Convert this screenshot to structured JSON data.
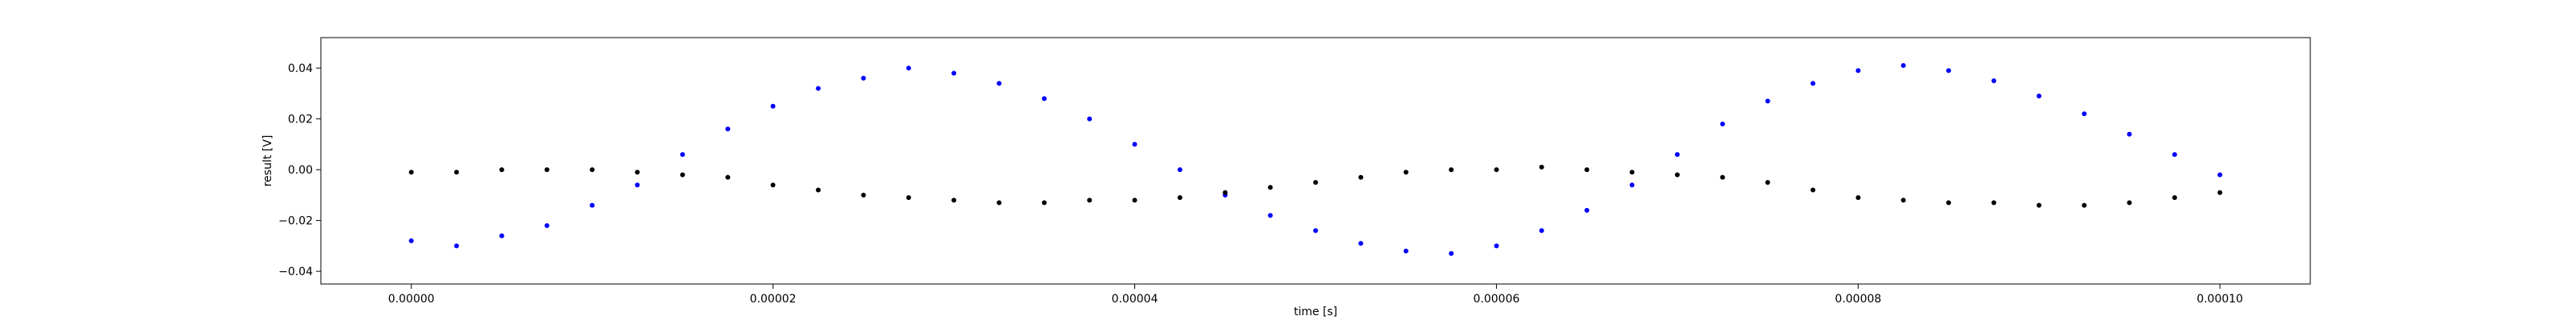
{
  "chart_data": {
    "type": "scatter",
    "title": "",
    "xlabel": "time [s]",
    "ylabel": "result [V]",
    "xlim": [
      -5e-06,
      0.000105
    ],
    "ylim": [
      -0.045,
      0.052
    ],
    "x_ticks": [
      0.0,
      2e-05,
      4e-05,
      6e-05,
      8e-05,
      0.0001
    ],
    "x_tick_labels": [
      "0.00000",
      "0.00002",
      "0.00004",
      "0.00006",
      "0.00008",
      "0.00010"
    ],
    "y_ticks": [
      -0.04,
      -0.02,
      0.0,
      0.02,
      0.04
    ],
    "y_tick_labels": [
      "−0.04",
      "−0.02",
      "0.00",
      "0.02",
      "0.04"
    ],
    "grid": false,
    "legend": "none",
    "series": [
      {
        "color": "#0000ff",
        "marker": "dot",
        "points": [
          [
            0.0,
            -0.028
          ],
          [
            2.5e-06,
            -0.03
          ],
          [
            5e-06,
            -0.026
          ],
          [
            7.5e-06,
            -0.022
          ],
          [
            1e-05,
            -0.014
          ],
          [
            1.25e-05,
            -0.006
          ],
          [
            1.5e-05,
            0.006
          ],
          [
            1.75e-05,
            0.016
          ],
          [
            2e-05,
            0.025
          ],
          [
            2.25e-05,
            0.032
          ],
          [
            2.5e-05,
            0.036
          ],
          [
            2.75e-05,
            0.04
          ],
          [
            3e-05,
            0.038
          ],
          [
            3.25e-05,
            0.034
          ],
          [
            3.5e-05,
            0.028
          ],
          [
            3.75e-05,
            0.02
          ],
          [
            4e-05,
            0.01
          ],
          [
            4.25e-05,
            0.0
          ],
          [
            4.5e-05,
            -0.01
          ],
          [
            4.75e-05,
            -0.018
          ],
          [
            5e-05,
            -0.024
          ],
          [
            5.25e-05,
            -0.029
          ],
          [
            5.5e-05,
            -0.032
          ],
          [
            5.75e-05,
            -0.033
          ],
          [
            6e-05,
            -0.03
          ],
          [
            6.25e-05,
            -0.024
          ],
          [
            6.5e-05,
            -0.016
          ],
          [
            6.75e-05,
            -0.006
          ],
          [
            7e-05,
            0.006
          ],
          [
            7.25e-05,
            0.018
          ],
          [
            7.5e-05,
            0.027
          ],
          [
            7.75e-05,
            0.034
          ],
          [
            8e-05,
            0.039
          ],
          [
            8.25e-05,
            0.041
          ],
          [
            8.5e-05,
            0.039
          ],
          [
            8.75e-05,
            0.035
          ],
          [
            9e-05,
            0.029
          ],
          [
            9.25e-05,
            0.022
          ],
          [
            9.5e-05,
            0.014
          ],
          [
            9.75e-05,
            0.006
          ],
          [
            0.0001,
            -0.002
          ]
        ]
      },
      {
        "color": "#000000",
        "marker": "dot",
        "points": [
          [
            0.0,
            -0.001
          ],
          [
            2.5e-06,
            -0.001
          ],
          [
            5e-06,
            0.0
          ],
          [
            7.5e-06,
            0.0
          ],
          [
            1e-05,
            0.0
          ],
          [
            1.25e-05,
            -0.001
          ],
          [
            1.5e-05,
            -0.002
          ],
          [
            1.75e-05,
            -0.003
          ],
          [
            2e-05,
            -0.006
          ],
          [
            2.25e-05,
            -0.008
          ],
          [
            2.5e-05,
            -0.01
          ],
          [
            2.75e-05,
            -0.011
          ],
          [
            3e-05,
            -0.012
          ],
          [
            3.25e-05,
            -0.013
          ],
          [
            3.5e-05,
            -0.013
          ],
          [
            3.75e-05,
            -0.012
          ],
          [
            4e-05,
            -0.012
          ],
          [
            4.25e-05,
            -0.011
          ],
          [
            4.5e-05,
            -0.009
          ],
          [
            4.75e-05,
            -0.007
          ],
          [
            5e-05,
            -0.005
          ],
          [
            5.25e-05,
            -0.003
          ],
          [
            5.5e-05,
            -0.001
          ],
          [
            5.75e-05,
            0.0
          ],
          [
            6e-05,
            0.0
          ],
          [
            6.25e-05,
            0.001
          ],
          [
            6.5e-05,
            0.0
          ],
          [
            6.75e-05,
            -0.001
          ],
          [
            7e-05,
            -0.002
          ],
          [
            7.25e-05,
            -0.003
          ],
          [
            7.5e-05,
            -0.005
          ],
          [
            7.75e-05,
            -0.008
          ],
          [
            8e-05,
            -0.011
          ],
          [
            8.25e-05,
            -0.012
          ],
          [
            8.5e-05,
            -0.013
          ],
          [
            8.75e-05,
            -0.013
          ],
          [
            9e-05,
            -0.014
          ],
          [
            9.25e-05,
            -0.014
          ],
          [
            9.5e-05,
            -0.013
          ],
          [
            9.75e-05,
            -0.011
          ],
          [
            0.0001,
            -0.009
          ]
        ]
      }
    ]
  }
}
